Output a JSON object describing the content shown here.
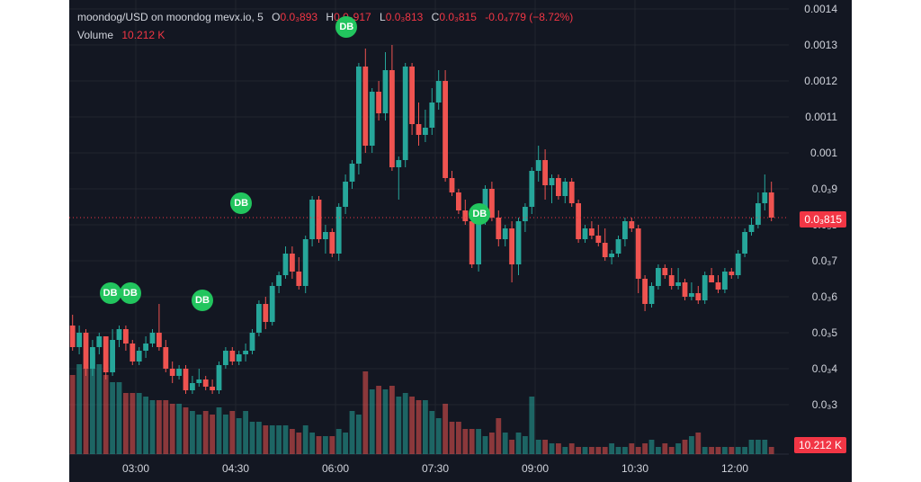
{
  "legend": {
    "symbol": "moondog/USD on moondog mevx.io, 5",
    "o_key": "O",
    "o_val": "0.0₃893",
    "h_key": "H",
    "h_val": "0.0₃917",
    "l_key": "L",
    "l_val": "0.0₃813",
    "c_key": "C",
    "c_val": "0.0₃815",
    "change": "-0.0₄779 (−8.72%)",
    "volume_label": "Volume",
    "volume_val": "10.212 K"
  },
  "price_axis": [
    "0.0014",
    "0.0013",
    "0.0012",
    "0.0011",
    "0.001",
    "0.0₃9",
    "0.0₃8",
    "0.0₃7",
    "0.0₃6",
    "0.0₃5",
    "0.0₃4",
    "0.0₃3"
  ],
  "last_price_tag": "0.0₃815",
  "volume_tag": "10.212 K",
  "time_axis": [
    "03:00",
    "04:30",
    "06:00",
    "07:30",
    "09:00",
    "10:30",
    "12:00"
  ],
  "db_markers": [
    {
      "label": "DB",
      "time": "02:42",
      "price": 0.00061
    },
    {
      "label": "DB",
      "time": "03:00",
      "price": 0.00061
    },
    {
      "label": "DB",
      "time": "04:05",
      "price": 0.00059
    },
    {
      "label": "DB",
      "time": "04:40",
      "price": 0.00086
    },
    {
      "label": "DB",
      "time": "06:15",
      "price": 0.00135
    },
    {
      "label": "DB",
      "time": "08:15",
      "price": 0.00083
    }
  ],
  "colors": {
    "up": "#26a69a",
    "down": "#ef5350",
    "background": "#131722",
    "grid": "#22262f",
    "tag": "#f23645",
    "marker": "#22c55e"
  },
  "chart_data": {
    "type": "candlestick",
    "title": "moondog/USD on moondog mevx.io, 5",
    "ylim": [
      0.00025,
      0.00142
    ],
    "x_range": [
      "02:05",
      "12:35"
    ],
    "series": [
      {
        "name": "candles",
        "candles": [
          [
            0.00052,
            0.00055,
            0.00045,
            0.00046
          ],
          [
            0.00046,
            0.00052,
            0.00044,
            0.0005
          ],
          [
            0.0005,
            0.00051,
            0.00038,
            0.0004
          ],
          [
            0.0004,
            0.00048,
            0.00038,
            0.00046
          ],
          [
            0.00046,
            0.0005,
            0.00044,
            0.00049
          ],
          [
            0.00049,
            0.00049,
            0.00037,
            0.00039
          ],
          [
            0.00039,
            0.00051,
            0.00038,
            0.00048
          ],
          [
            0.00048,
            0.00052,
            0.00046,
            0.00051
          ],
          [
            0.00051,
            0.00052,
            0.00045,
            0.00047
          ],
          [
            0.00047,
            0.00048,
            0.00041,
            0.00042
          ],
          [
            0.00042,
            0.00046,
            0.00041,
            0.00045
          ],
          [
            0.00045,
            0.00049,
            0.00043,
            0.00047
          ],
          [
            0.00047,
            0.00051,
            0.00046,
            0.0005
          ],
          [
            0.0005,
            0.00058,
            0.00045,
            0.00046
          ],
          [
            0.00046,
            0.00048,
            0.00039,
            0.0004
          ],
          [
            0.0004,
            0.00042,
            0.00036,
            0.00038
          ],
          [
            0.00038,
            0.00041,
            0.00037,
            0.0004
          ],
          [
            0.0004,
            0.00041,
            0.00033,
            0.00034
          ],
          [
            0.00034,
            0.00038,
            0.00033,
            0.00036
          ],
          [
            0.00036,
            0.0004,
            0.00035,
            0.00037
          ],
          [
            0.00037,
            0.00038,
            0.00034,
            0.00035
          ],
          [
            0.00035,
            0.00037,
            0.00033,
            0.00034
          ],
          [
            0.00034,
            0.00042,
            0.00033,
            0.00041
          ],
          [
            0.00041,
            0.00046,
            0.0004,
            0.00045
          ],
          [
            0.00045,
            0.00046,
            0.00041,
            0.00042
          ],
          [
            0.00042,
            0.00045,
            0.00041,
            0.00044
          ],
          [
            0.00044,
            0.00047,
            0.00042,
            0.00045
          ],
          [
            0.00045,
            0.00051,
            0.00044,
            0.0005
          ],
          [
            0.0005,
            0.00059,
            0.00049,
            0.00058
          ],
          [
            0.00058,
            0.0006,
            0.00051,
            0.00053
          ],
          [
            0.00053,
            0.00064,
            0.00052,
            0.00063
          ],
          [
            0.00063,
            0.00067,
            0.00061,
            0.00066
          ],
          [
            0.00066,
            0.00074,
            0.00065,
            0.00072
          ],
          [
            0.00072,
            0.00074,
            0.00065,
            0.00067
          ],
          [
            0.00067,
            0.00071,
            0.00062,
            0.00063
          ],
          [
            0.00063,
            0.00077,
            0.00061,
            0.00076
          ],
          [
            0.00076,
            0.00088,
            0.00074,
            0.00087
          ],
          [
            0.00087,
            0.00088,
            0.00075,
            0.00076
          ],
          [
            0.00076,
            0.0008,
            0.00072,
            0.00078
          ],
          [
            0.00078,
            0.00079,
            0.00071,
            0.00072
          ],
          [
            0.00072,
            0.00086,
            0.0007,
            0.00085
          ],
          [
            0.00085,
            0.00094,
            0.00083,
            0.00092
          ],
          [
            0.00092,
            0.00098,
            0.0009,
            0.00097
          ],
          [
            0.00097,
            0.00125,
            0.00094,
            0.00124
          ],
          [
            0.00124,
            0.00129,
            0.001,
            0.00102
          ],
          [
            0.00102,
            0.00118,
            0.001,
            0.00117
          ],
          [
            0.00117,
            0.0012,
            0.00109,
            0.00111
          ],
          [
            0.00111,
            0.00128,
            0.00109,
            0.00123
          ],
          [
            0.00123,
            0.0013,
            0.00095,
            0.00096
          ],
          [
            0.00096,
            0.00099,
            0.00087,
            0.00098
          ],
          [
            0.00098,
            0.00125,
            0.00096,
            0.00124
          ],
          [
            0.00124,
            0.00125,
            0.00105,
            0.00108
          ],
          [
            0.00108,
            0.00114,
            0.00102,
            0.00105
          ],
          [
            0.00105,
            0.00112,
            0.00103,
            0.00107
          ],
          [
            0.00107,
            0.00118,
            0.00105,
            0.00114
          ],
          [
            0.00114,
            0.00123,
            0.00112,
            0.0012
          ],
          [
            0.0012,
            0.00123,
            0.00092,
            0.00093
          ],
          [
            0.00093,
            0.00095,
            0.00088,
            0.00089
          ],
          [
            0.00089,
            0.0009,
            0.00083,
            0.00084
          ],
          [
            0.00084,
            0.00087,
            0.0008,
            0.00081
          ],
          [
            0.00081,
            0.00083,
            0.00068,
            0.00069
          ],
          [
            0.00069,
            0.00083,
            0.00067,
            0.00082
          ],
          [
            0.00082,
            0.00091,
            0.0008,
            0.0009
          ],
          [
            0.0009,
            0.00092,
            0.00081,
            0.00082
          ],
          [
            0.00082,
            0.00084,
            0.00074,
            0.00076
          ],
          [
            0.00076,
            0.0008,
            0.00074,
            0.00079
          ],
          [
            0.00079,
            0.00081,
            0.00064,
            0.00069
          ],
          [
            0.00069,
            0.00082,
            0.00066,
            0.00081
          ],
          [
            0.00081,
            0.00086,
            0.00078,
            0.00085
          ],
          [
            0.00085,
            0.00096,
            0.00083,
            0.00095
          ],
          [
            0.00095,
            0.00102,
            0.00092,
            0.00098
          ],
          [
            0.00098,
            0.00101,
            0.00087,
            0.00091
          ],
          [
            0.00091,
            0.00094,
            0.00086,
            0.00093
          ],
          [
            0.00093,
            0.00094,
            0.00087,
            0.00088
          ],
          [
            0.00088,
            0.00093,
            0.00086,
            0.00092
          ],
          [
            0.00092,
            0.00093,
            0.00085,
            0.00086
          ],
          [
            0.00086,
            0.00087,
            0.00075,
            0.00076
          ],
          [
            0.00076,
            0.0008,
            0.00075,
            0.00079
          ],
          [
            0.00079,
            0.00081,
            0.00076,
            0.00077
          ],
          [
            0.00077,
            0.0008,
            0.00074,
            0.00075
          ],
          [
            0.00075,
            0.00079,
            0.0007,
            0.00071
          ],
          [
            0.00071,
            0.00073,
            0.00069,
            0.00072
          ],
          [
            0.00072,
            0.00077,
            0.00071,
            0.00076
          ],
          [
            0.00076,
            0.00082,
            0.00074,
            0.00081
          ],
          [
            0.00081,
            0.00082,
            0.00078,
            0.00079
          ],
          [
            0.00079,
            0.0008,
            0.00061,
            0.00065
          ],
          [
            0.00065,
            0.00066,
            0.00056,
            0.00058
          ],
          [
            0.00058,
            0.00064,
            0.00057,
            0.00063
          ],
          [
            0.00063,
            0.00069,
            0.00062,
            0.00068
          ],
          [
            0.00068,
            0.00069,
            0.00065,
            0.00066
          ],
          [
            0.00066,
            0.00068,
            0.00062,
            0.00063
          ],
          [
            0.00063,
            0.00068,
            0.00062,
            0.00064
          ],
          [
            0.00064,
            0.00065,
            0.00059,
            0.0006
          ],
          [
            0.0006,
            0.00064,
            0.00059,
            0.00061
          ],
          [
            0.00061,
            0.00063,
            0.00058,
            0.00059
          ],
          [
            0.00059,
            0.00067,
            0.00058,
            0.00066
          ],
          [
            0.00066,
            0.00068,
            0.00064,
            0.00064
          ],
          [
            0.00064,
            0.00066,
            0.00061,
            0.00062
          ],
          [
            0.00062,
            0.00068,
            0.00061,
            0.00067
          ],
          [
            0.00067,
            0.00068,
            0.00065,
            0.00066
          ],
          [
            0.00066,
            0.00073,
            0.00065,
            0.00072
          ],
          [
            0.00072,
            0.00079,
            0.00071,
            0.00078
          ],
          [
            0.00078,
            0.00082,
            0.00077,
            0.0008
          ],
          [
            0.0008,
            0.00089,
            0.00079,
            0.00086
          ],
          [
            0.00086,
            0.00094,
            0.00084,
            0.00089
          ],
          [
            0.00089,
            0.00092,
            0.00081,
            0.00082
          ]
        ]
      },
      {
        "name": "Volume",
        "values": [
          2.2,
          2.5,
          2.4,
          2.8,
          2.5,
          2.2,
          2.0,
          2.0,
          1.7,
          1.7,
          1.7,
          1.6,
          1.5,
          1.5,
          1.5,
          1.4,
          1.4,
          1.3,
          1.2,
          1.1,
          1.2,
          1.1,
          1.3,
          1.1,
          1.2,
          1.0,
          1.2,
          0.9,
          0.9,
          0.8,
          0.8,
          0.8,
          0.8,
          0.7,
          0.6,
          0.8,
          0.6,
          0.5,
          0.5,
          0.5,
          0.7,
          0.6,
          1.2,
          1.1,
          2.3,
          1.8,
          1.9,
          1.8,
          1.9,
          1.6,
          1.7,
          1.6,
          1.5,
          1.5,
          1.2,
          1.0,
          1.4,
          0.9,
          0.9,
          0.7,
          0.7,
          0.7,
          0.5,
          0.6,
          1.0,
          0.6,
          0.4,
          0.6,
          0.5,
          1.6,
          0.4,
          0.4,
          0.3,
          0.3,
          0.2,
          0.3,
          0.2,
          0.2,
          0.2,
          0.2,
          0.2,
          0.3,
          0.2,
          0.2,
          0.3,
          0.2,
          0.3,
          0.4,
          0.2,
          0.3,
          0.2,
          0.3,
          0.4,
          0.5,
          0.6,
          0.2,
          0.2,
          0.2,
          0.2,
          0.2,
          0.2,
          0.2,
          0.4,
          0.4,
          0.4,
          0.2
        ]
      }
    ]
  }
}
